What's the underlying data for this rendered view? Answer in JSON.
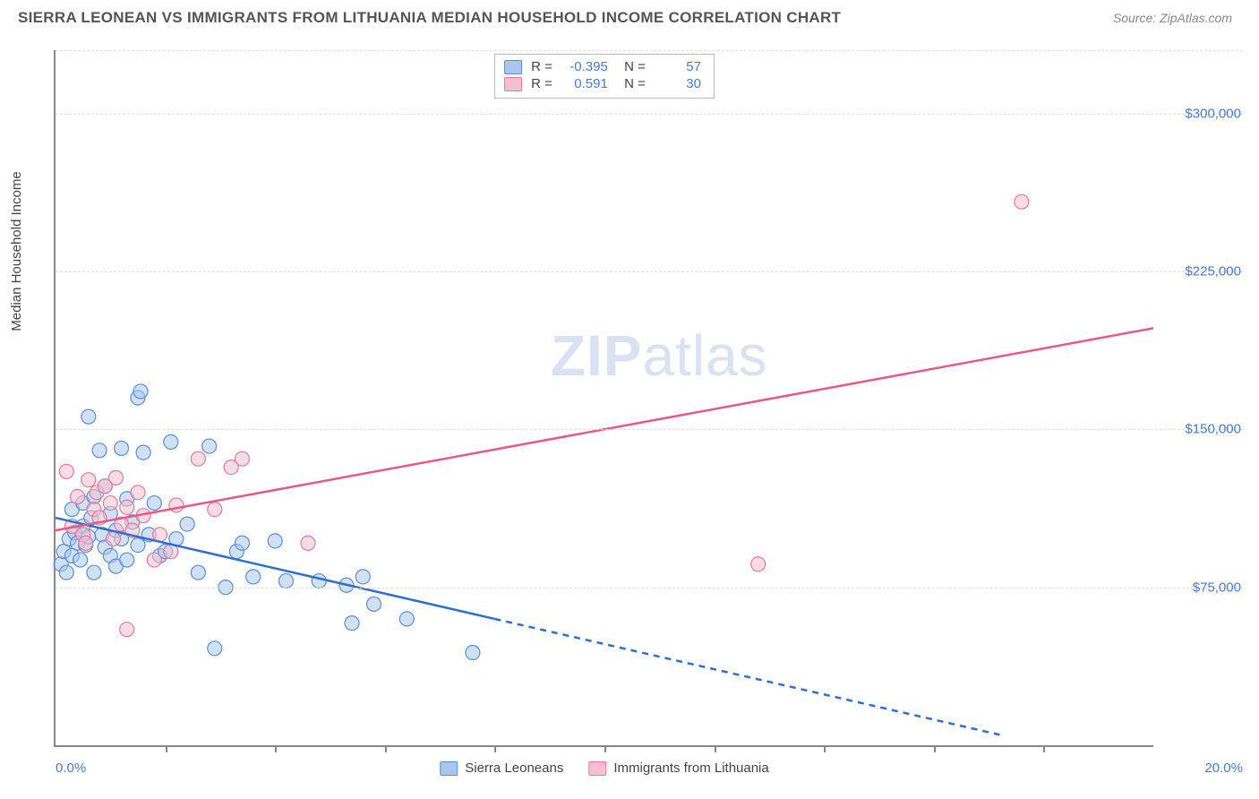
{
  "header": {
    "title": "SIERRA LEONEAN VS IMMIGRANTS FROM LITHUANIA MEDIAN HOUSEHOLD INCOME CORRELATION CHART",
    "source": "Source: ZipAtlas.com"
  },
  "watermark": {
    "prefix": "ZIP",
    "suffix": "atlas"
  },
  "chart": {
    "type": "scatter",
    "background_color": "#ffffff",
    "grid_color": "#dddddd",
    "axis_color": "#888888",
    "yaxis_label": "Median Household Income",
    "xlim": [
      0,
      20
    ],
    "ylim": [
      0,
      330000
    ],
    "xaxis_min_label": "0.0%",
    "xaxis_max_label": "20.0%",
    "xtick_positions": [
      2,
      4,
      6,
      8,
      10,
      12,
      14,
      16,
      18
    ],
    "yticks": [
      {
        "v": 75000,
        "label": "$75,000"
      },
      {
        "v": 150000,
        "label": "$150,000"
      },
      {
        "v": 225000,
        "label": "$225,000"
      },
      {
        "v": 300000,
        "label": "$300,000"
      }
    ],
    "marker_radius": 8,
    "marker_opacity": 0.55,
    "line_width": 2.5,
    "series": [
      {
        "key": "sierra_leoneans",
        "label": "Sierra Leoneans",
        "fill_color": "#a9c6ec",
        "stroke_color": "#5b8fd6",
        "line_color": "#2f6fd0",
        "corr_R": "-0.395",
        "corr_N": "57",
        "regression": {
          "solid": {
            "x1": 0,
            "y1": 108000,
            "x2": 8,
            "y2": 60000
          },
          "dash": {
            "x1": 8,
            "y1": 60000,
            "x2": 17.2,
            "y2": 5000
          }
        },
        "points": [
          [
            0.1,
            86000
          ],
          [
            0.15,
            92000
          ],
          [
            0.2,
            82000
          ],
          [
            0.25,
            98000
          ],
          [
            0.3,
            112000
          ],
          [
            0.3,
            90000
          ],
          [
            0.35,
            101000
          ],
          [
            0.4,
            96000
          ],
          [
            0.45,
            88000
          ],
          [
            0.5,
            104000
          ],
          [
            0.5,
            115000
          ],
          [
            0.55,
            95000
          ],
          [
            0.6,
            99000
          ],
          [
            0.6,
            156000
          ],
          [
            0.65,
            108000
          ],
          [
            0.7,
            118000
          ],
          [
            0.7,
            82000
          ],
          [
            0.8,
            140000
          ],
          [
            0.85,
            100000
          ],
          [
            0.9,
            94000
          ],
          [
            0.9,
            123000
          ],
          [
            1.0,
            110000
          ],
          [
            1.0,
            90000
          ],
          [
            1.1,
            102000
          ],
          [
            1.1,
            85000
          ],
          [
            1.2,
            141000
          ],
          [
            1.2,
            98000
          ],
          [
            1.3,
            117000
          ],
          [
            1.3,
            88000
          ],
          [
            1.4,
            106000
          ],
          [
            1.5,
            95000
          ],
          [
            1.5,
            165000
          ],
          [
            1.55,
            168000
          ],
          [
            1.6,
            139000
          ],
          [
            1.7,
            100000
          ],
          [
            1.8,
            115000
          ],
          [
            1.9,
            90000
          ],
          [
            2.0,
            92000
          ],
          [
            2.1,
            144000
          ],
          [
            2.2,
            98000
          ],
          [
            2.4,
            105000
          ],
          [
            2.6,
            82000
          ],
          [
            2.8,
            142000
          ],
          [
            2.9,
            46000
          ],
          [
            3.1,
            75000
          ],
          [
            3.3,
            92000
          ],
          [
            3.4,
            96000
          ],
          [
            3.6,
            80000
          ],
          [
            4.0,
            97000
          ],
          [
            4.2,
            78000
          ],
          [
            4.8,
            78000
          ],
          [
            5.3,
            76000
          ],
          [
            5.4,
            58000
          ],
          [
            5.6,
            80000
          ],
          [
            5.8,
            67000
          ],
          [
            6.4,
            60000
          ],
          [
            7.6,
            44000
          ]
        ]
      },
      {
        "key": "immigrants_lithuania",
        "label": "Immigrants from Lithuania",
        "fill_color": "#f4bfce",
        "stroke_color": "#e77a9b",
        "line_color": "#e65a87",
        "corr_R": "0.591",
        "corr_N": "30",
        "regression": {
          "solid": {
            "x1": 0,
            "y1": 102000,
            "x2": 20,
            "y2": 198000
          },
          "dash": null
        },
        "points": [
          [
            0.2,
            130000
          ],
          [
            0.3,
            104000
          ],
          [
            0.4,
            118000
          ],
          [
            0.5,
            100000
          ],
          [
            0.55,
            96000
          ],
          [
            0.6,
            126000
          ],
          [
            0.7,
            112000
          ],
          [
            0.75,
            120000
          ],
          [
            0.8,
            108000
          ],
          [
            0.9,
            123000
          ],
          [
            1.0,
            115000
          ],
          [
            1.05,
            98000
          ],
          [
            1.1,
            127000
          ],
          [
            1.2,
            105000
          ],
          [
            1.3,
            113000
          ],
          [
            1.3,
            55000
          ],
          [
            1.4,
            102000
          ],
          [
            1.5,
            120000
          ],
          [
            1.6,
            109000
          ],
          [
            1.8,
            88000
          ],
          [
            1.9,
            100000
          ],
          [
            2.1,
            92000
          ],
          [
            2.2,
            114000
          ],
          [
            2.6,
            136000
          ],
          [
            2.9,
            112000
          ],
          [
            3.2,
            132000
          ],
          [
            3.4,
            136000
          ],
          [
            4.6,
            96000
          ],
          [
            12.8,
            86000
          ],
          [
            17.6,
            258000
          ]
        ]
      }
    ]
  },
  "label_fontsize": 15,
  "title_fontsize": 17,
  "value_color": "#4a7bd0",
  "text_color": "#444444"
}
